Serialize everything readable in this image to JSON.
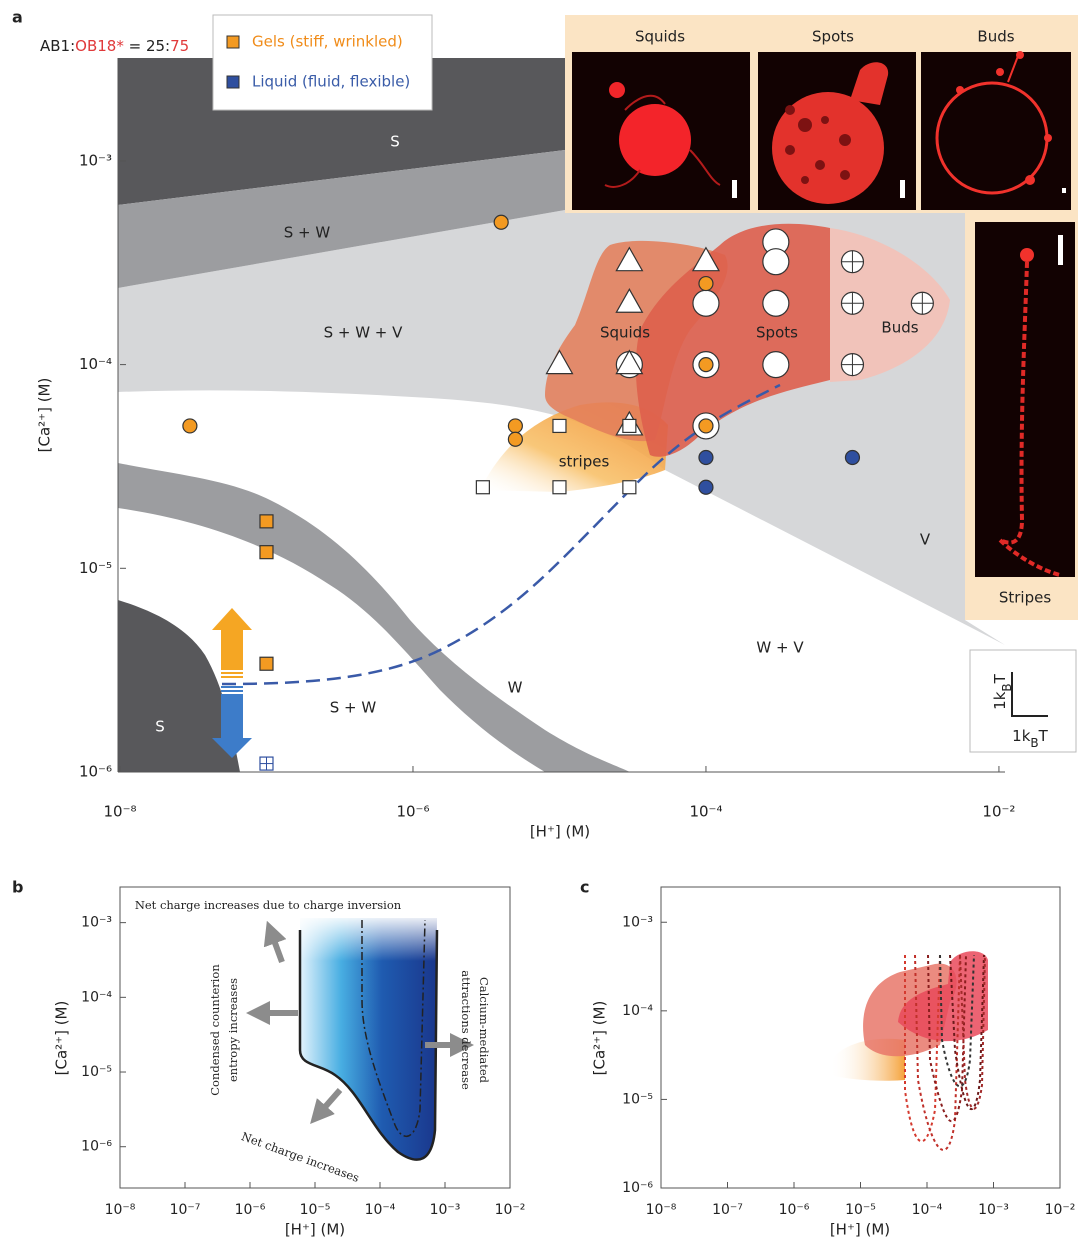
{
  "chart_data": [
    {
      "type": "scatter",
      "panel": "a",
      "composition": [
        "AB1:",
        "OB18*",
        " = 25:",
        "75"
      ],
      "xlabel": "[H⁺] (M)",
      "ylabel": "[Ca²⁺] (M)",
      "log_x": true,
      "log_y": true,
      "xlim": [
        1e-08,
        0.011
      ],
      "ylim": [
        1e-06,
        0.0032
      ],
      "xticks": [
        {
          "value": 1e-08,
          "label": "10⁻⁸"
        },
        {
          "value": 1e-06,
          "label": "10⁻⁶"
        },
        {
          "value": 0.0001,
          "label": "10⁻⁴"
        },
        {
          "value": 0.01,
          "label": "10⁻²"
        }
      ],
      "yticks": [
        {
          "value": 1e-06,
          "label": "10⁻⁶"
        },
        {
          "value": 1e-05,
          "label": "10⁻⁵"
        },
        {
          "value": 0.0001,
          "label": "10⁻⁴"
        },
        {
          "value": 0.001,
          "label": "10⁻³"
        }
      ],
      "series": [
        {
          "name": "Gels (stiff, wrinkled)",
          "color": "#f39a22",
          "marker": "circle",
          "x": [
            3e-08,
            4e-06,
            5e-06,
            5e-06,
            0.0001,
            0.0001,
            0.0001
          ],
          "values": [
            5e-05,
            0.0005,
            5e-05,
            4.3e-05,
            0.00025,
            0.0001,
            5e-05
          ]
        },
        {
          "color": "#f39a22",
          "marker": "square",
          "x": [
            1e-07,
            1e-07,
            1e-07
          ],
          "values": [
            1.7e-05,
            1.2e-05,
            3.4e-06
          ]
        },
        {
          "name": "Liquid (fluid, flexible)",
          "color": "#2f4f9f",
          "marker": "circle",
          "x": [
            0.0001,
            0.0001,
            0.001
          ],
          "values": [
            3.5e-05,
            2.5e-05,
            3.5e-05
          ]
        },
        {
          "color": "#2f4f9f",
          "marker": "square-plus",
          "x": [
            1e-07
          ],
          "values": [
            1.1e-06
          ]
        },
        {
          "color": "#ffffff",
          "marker": "circle-large",
          "x": [
            0.0001,
            0.0001,
            0.0001,
            0.0003,
            0.0003,
            0.0003,
            0.0003,
            3e-05
          ],
          "values": [
            0.0002,
            0.0001,
            5e-05,
            0.0004,
            0.00032,
            0.0002,
            0.0001,
            0.0001
          ]
        },
        {
          "color": "#ffffff",
          "marker": "triangle",
          "x": [
            3e-05,
            3e-05,
            1e-05,
            3e-05,
            3e-05,
            0.0001
          ],
          "values": [
            0.00032,
            0.0002,
            0.0001,
            0.0001,
            5e-05,
            0.00032
          ]
        },
        {
          "color": "#ffffff",
          "marker": "square",
          "x": [
            3e-06,
            1e-05,
            1e-05,
            3e-05,
            3e-05
          ],
          "values": [
            2.5e-05,
            5e-05,
            2.5e-05,
            2.5e-05,
            5e-05
          ]
        },
        {
          "color": "#ffffff",
          "marker": "circle-plus",
          "x": [
            0.001,
            0.001,
            0.001,
            0.003
          ],
          "values": [
            0.00032,
            0.0002,
            0.0001,
            0.0002
          ]
        }
      ],
      "region_labels": [
        "S",
        "S + W",
        "S + W + V",
        "V",
        "W + V",
        "W",
        "S + W",
        "S"
      ],
      "cluster_labels": [
        "Squids",
        "Spots",
        "Buds",
        "stripes"
      ],
      "micrographs": [
        "Squids",
        "Spots",
        "Buds",
        "Stripes"
      ],
      "scale_bar_label": [
        "1k",
        "B",
        "T"
      ]
    },
    {
      "type": "region",
      "panel": "b",
      "xlabel": "[H⁺] (M)",
      "ylabel": "[Ca²⁺] (M)",
      "log_x": true,
      "log_y": true,
      "xlim": [
        1e-08,
        0.01
      ],
      "ylim": [
        2.8e-07,
        0.003
      ],
      "xticks": [
        {
          "value": 1e-08,
          "label": "10⁻⁸"
        },
        {
          "value": 1e-07,
          "label": "10⁻⁷"
        },
        {
          "value": 1e-06,
          "label": "10⁻⁶"
        },
        {
          "value": 1e-05,
          "label": "10⁻⁵"
        },
        {
          "value": 0.0001,
          "label": "10⁻⁴"
        },
        {
          "value": 0.001,
          "label": "10⁻³"
        },
        {
          "value": 0.01,
          "label": "10⁻²"
        }
      ],
      "yticks": [
        {
          "value": 1e-06,
          "label": "10⁻⁶"
        },
        {
          "value": 1e-05,
          "label": "10⁻⁵"
        },
        {
          "value": 0.0001,
          "label": "10⁻⁴"
        },
        {
          "value": 0.001,
          "label": "10⁻³"
        }
      ],
      "annotations": [
        "Net charge increases due to charge inversion",
        "Condensed counterion",
        "entropy increases",
        "Calcium-mediated",
        "attractions decrease",
        "Net charge increases"
      ]
    },
    {
      "type": "region",
      "panel": "c",
      "xlabel": "[H⁺] (M)",
      "ylabel": "[Ca²⁺] (M)",
      "log_x": true,
      "log_y": true,
      "xlim": [
        1e-08,
        0.01
      ],
      "ylim": [
        1e-06,
        0.0025
      ],
      "xticks": [
        {
          "value": 1e-08,
          "label": "10⁻⁸"
        },
        {
          "value": 1e-07,
          "label": "10⁻⁷"
        },
        {
          "value": 1e-06,
          "label": "10⁻⁶"
        },
        {
          "value": 1e-05,
          "label": "10⁻⁵"
        },
        {
          "value": 0.0001,
          "label": "10⁻⁴"
        },
        {
          "value": 0.001,
          "label": "10⁻³"
        },
        {
          "value": 0.01,
          "label": "10⁻²"
        }
      ],
      "yticks": [
        {
          "value": 1e-06,
          "label": "10⁻⁶"
        },
        {
          "value": 1e-05,
          "label": "10⁻⁵"
        },
        {
          "value": 0.0001,
          "label": "10⁻⁴"
        },
        {
          "value": 0.001,
          "label": "10⁻³"
        }
      ]
    }
  ]
}
